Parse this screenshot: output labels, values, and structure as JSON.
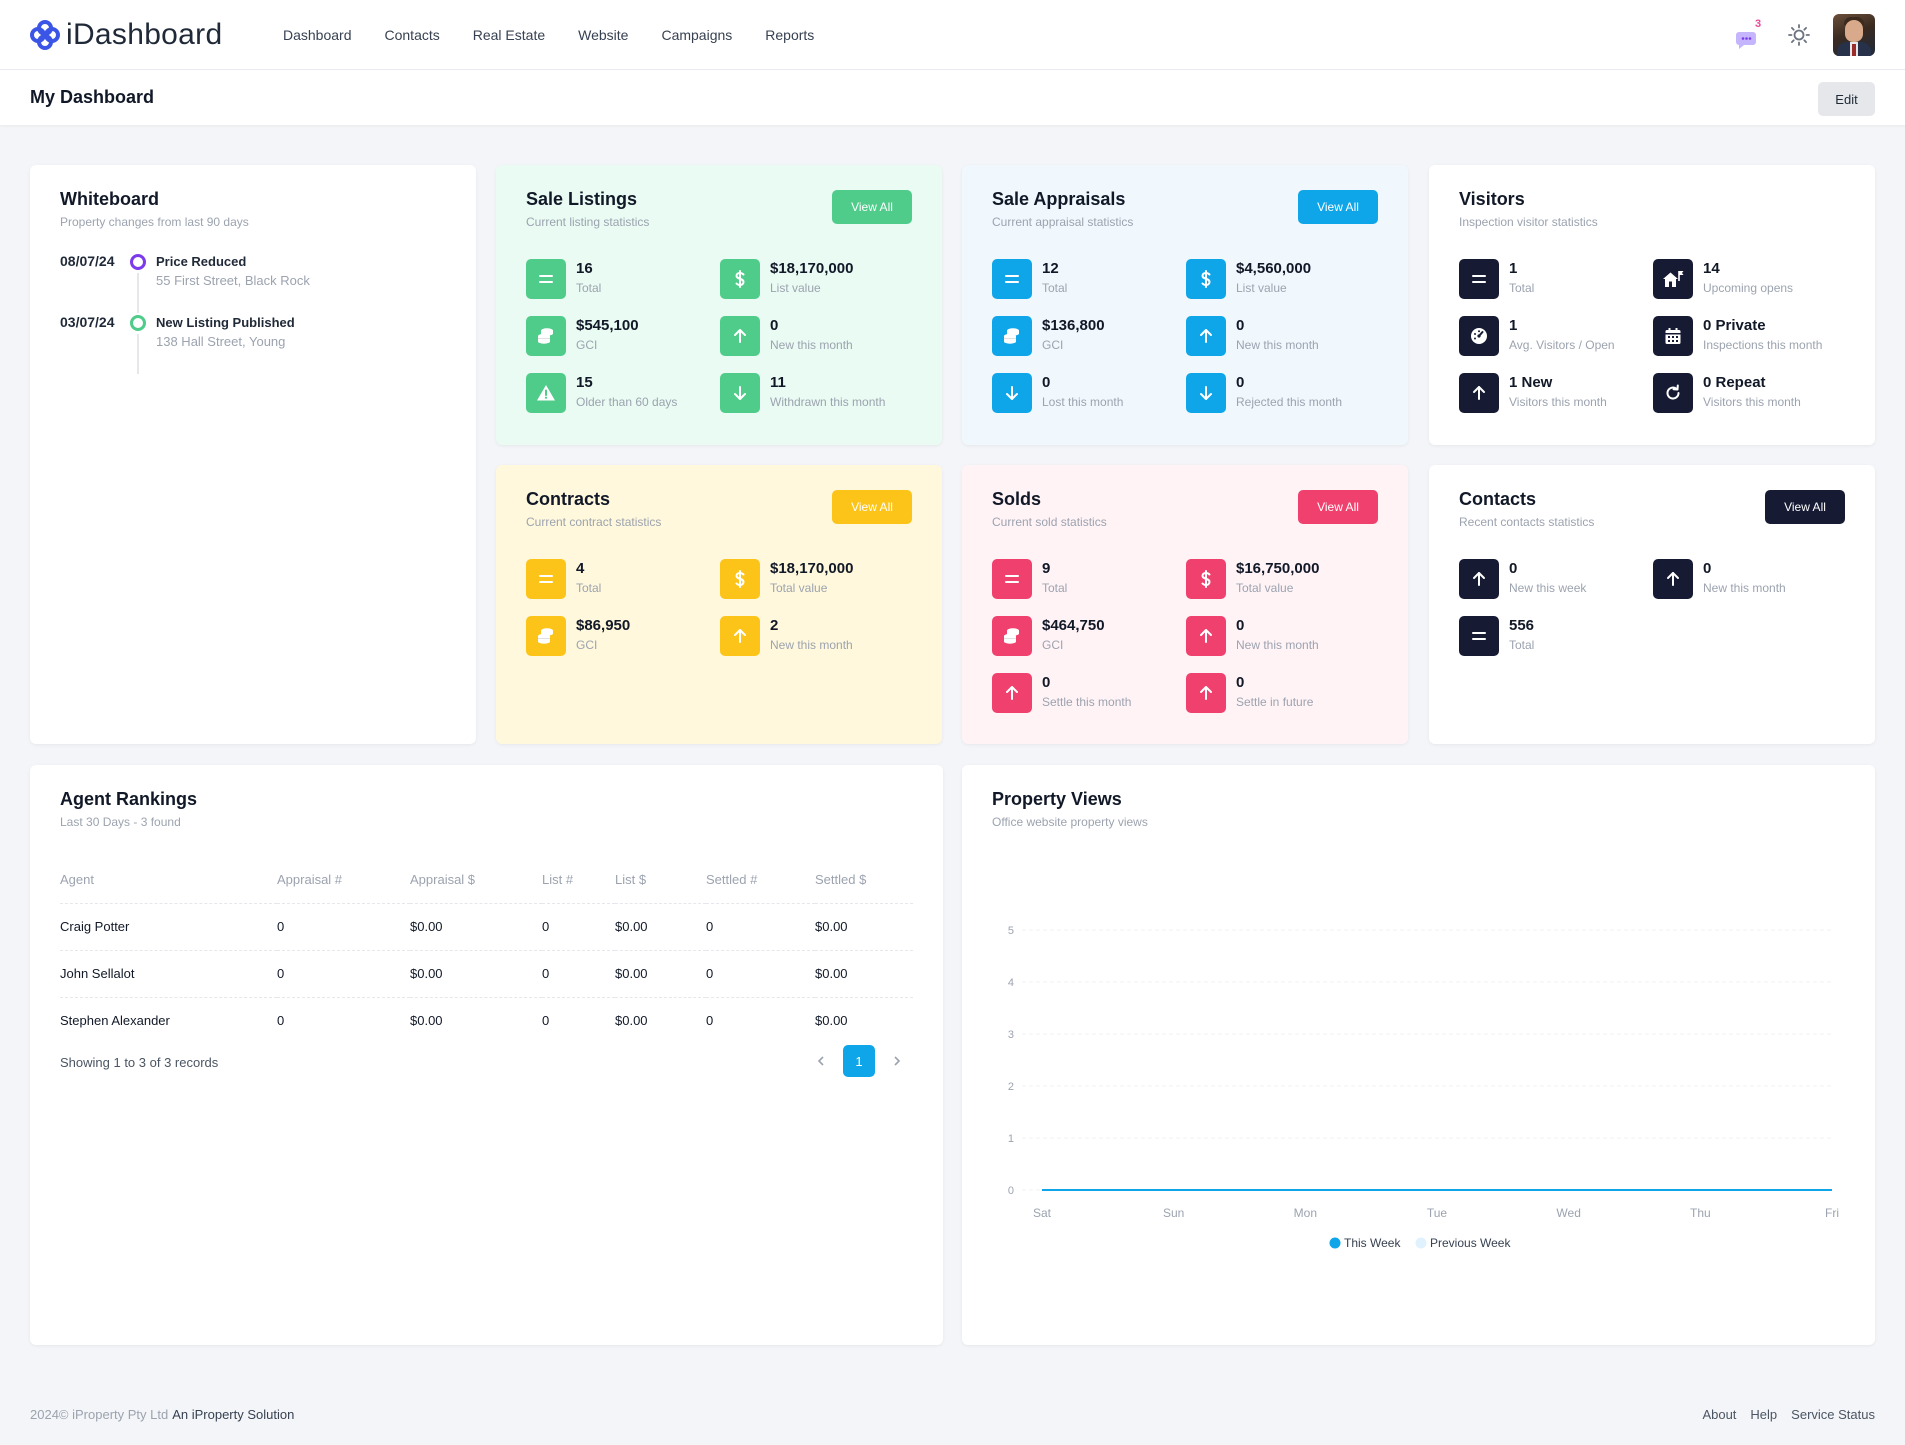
{
  "brand": {
    "name": "iDashboard"
  },
  "nav": {
    "items": [
      "Dashboard",
      "Contacts",
      "Real Estate",
      "Website",
      "Campaigns",
      "Reports"
    ],
    "notification_count": "3"
  },
  "header": {
    "title": "My Dashboard",
    "edit_label": "Edit"
  },
  "colors": {
    "green": "#4fcb8a",
    "blue": "#0ea5e9",
    "yellow": "#fcc419",
    "pink": "#f0406d",
    "navy": "#161b33",
    "brand": "#3b55e6"
  },
  "whiteboard": {
    "title": "Whiteboard",
    "subtitle": "Property changes from last 90 days",
    "items": [
      {
        "date": "08/07/24",
        "title": "Price Reduced",
        "address": "55 First Street, Black Rock",
        "dot_color": "#7c3aed"
      },
      {
        "date": "03/07/24",
        "title": "New Listing Published",
        "address": "138 Hall Street, Young",
        "dot_color": "#4fcb8a"
      }
    ]
  },
  "sale_listings": {
    "title": "Sale Listings",
    "subtitle": "Current listing statistics",
    "button": "View All",
    "stats": [
      {
        "icon": "equals-icon",
        "value": "16",
        "label": "Total"
      },
      {
        "icon": "dollar-icon",
        "value": "$18,170,000",
        "label": "List value"
      },
      {
        "icon": "coins-icon",
        "value": "$545,100",
        "label": "GCI"
      },
      {
        "icon": "arrow-up-icon",
        "value": "0",
        "label": "New this month"
      },
      {
        "icon": "warning-icon",
        "value": "15",
        "label": "Older than 60 days"
      },
      {
        "icon": "arrow-down-icon",
        "value": "11",
        "label": "Withdrawn this month"
      }
    ]
  },
  "sale_appraisals": {
    "title": "Sale Appraisals",
    "subtitle": "Current appraisal statistics",
    "button": "View All",
    "stats": [
      {
        "icon": "equals-icon",
        "value": "12",
        "label": "Total"
      },
      {
        "icon": "dollar-icon",
        "value": "$4,560,000",
        "label": "List value"
      },
      {
        "icon": "coins-icon",
        "value": "$136,800",
        "label": "GCI"
      },
      {
        "icon": "arrow-up-icon",
        "value": "0",
        "label": "New this month"
      },
      {
        "icon": "arrow-down-icon",
        "value": "0",
        "label": "Lost this month"
      },
      {
        "icon": "arrow-down-icon",
        "value": "0",
        "label": "Rejected this month"
      }
    ]
  },
  "visitors": {
    "title": "Visitors",
    "subtitle": "Inspection visitor statistics",
    "stats": [
      {
        "icon": "equals-icon",
        "value": "1",
        "label": "Total"
      },
      {
        "icon": "house-flag-icon",
        "value": "14",
        "label": "Upcoming opens"
      },
      {
        "icon": "gauge-icon",
        "value": "1",
        "label": "Avg. Visitors / Open"
      },
      {
        "icon": "calendar-icon",
        "value": "0 Private",
        "label": "Inspections this month"
      },
      {
        "icon": "arrow-up-icon",
        "value": "1 New",
        "label": "Visitors this month"
      },
      {
        "icon": "refresh-icon",
        "value": "0 Repeat",
        "label": "Visitors this month"
      }
    ]
  },
  "contracts": {
    "title": "Contracts",
    "subtitle": "Current contract statistics",
    "button": "View All",
    "stats": [
      {
        "icon": "equals-icon",
        "value": "4",
        "label": "Total"
      },
      {
        "icon": "dollar-icon",
        "value": "$18,170,000",
        "label": "Total value"
      },
      {
        "icon": "coins-icon",
        "value": "$86,950",
        "label": "GCI"
      },
      {
        "icon": "arrow-up-icon",
        "value": "2",
        "label": "New this month"
      }
    ]
  },
  "solds": {
    "title": "Solds",
    "subtitle": "Current sold statistics",
    "button": "View All",
    "stats": [
      {
        "icon": "equals-icon",
        "value": "9",
        "label": "Total"
      },
      {
        "icon": "dollar-icon",
        "value": "$16,750,000",
        "label": "Total value"
      },
      {
        "icon": "coins-icon",
        "value": "$464,750",
        "label": "GCI"
      },
      {
        "icon": "arrow-up-icon",
        "value": "0",
        "label": "New this month"
      },
      {
        "icon": "arrow-up-icon",
        "value": "0",
        "label": "Settle this month"
      },
      {
        "icon": "arrow-up-icon",
        "value": "0",
        "label": "Settle in future"
      }
    ]
  },
  "contacts": {
    "title": "Contacts",
    "subtitle": "Recent contacts statistics",
    "button": "View All",
    "stats": [
      {
        "icon": "arrow-up-icon",
        "value": "0",
        "label": "New this week"
      },
      {
        "icon": "arrow-up-icon",
        "value": "0",
        "label": "New this month"
      },
      {
        "icon": "equals-icon",
        "value": "556",
        "label": "Total"
      }
    ]
  },
  "agent_rankings": {
    "title": "Agent Rankings",
    "subtitle": "Last 30 Days - 3 found",
    "columns": [
      "Agent",
      "Appraisal #",
      "Appraisal $",
      "List #",
      "List $",
      "Settled #",
      "Settled $"
    ],
    "rows": [
      [
        "Craig Potter",
        "0",
        "$0.00",
        "0",
        "$0.00",
        "0",
        "$0.00"
      ],
      [
        "John Sellalot",
        "0",
        "$0.00",
        "0",
        "$0.00",
        "0",
        "$0.00"
      ],
      [
        "Stephen Alexander",
        "0",
        "$0.00",
        "0",
        "$0.00",
        "0",
        "$0.00"
      ]
    ],
    "showing": "Showing 1 to 3 of 3 records",
    "current_page": "1"
  },
  "property_views": {
    "title": "Property Views",
    "subtitle": "Office website property views"
  },
  "chart_data": {
    "type": "line",
    "title": "Property Views",
    "categories": [
      "Sat",
      "Sun",
      "Mon",
      "Tue",
      "Wed",
      "Thu",
      "Fri"
    ],
    "series": [
      {
        "name": "This Week",
        "values": [
          0,
          0,
          0,
          0,
          0,
          0,
          0
        ],
        "color": "#0ea5e9"
      },
      {
        "name": "Previous Week",
        "values": [
          0,
          0,
          0,
          0,
          0,
          0,
          0
        ],
        "color": "#e0f2fe"
      }
    ],
    "ylim": [
      0,
      5
    ],
    "yticks": [
      "0",
      "1",
      "2",
      "3",
      "4",
      "5"
    ],
    "grid": true,
    "legend": "bottom-center"
  },
  "footer": {
    "copyright": "2024© iProperty Pty Ltd",
    "solution": "An iProperty Solution",
    "links": [
      "About",
      "Help",
      "Service Status"
    ]
  }
}
